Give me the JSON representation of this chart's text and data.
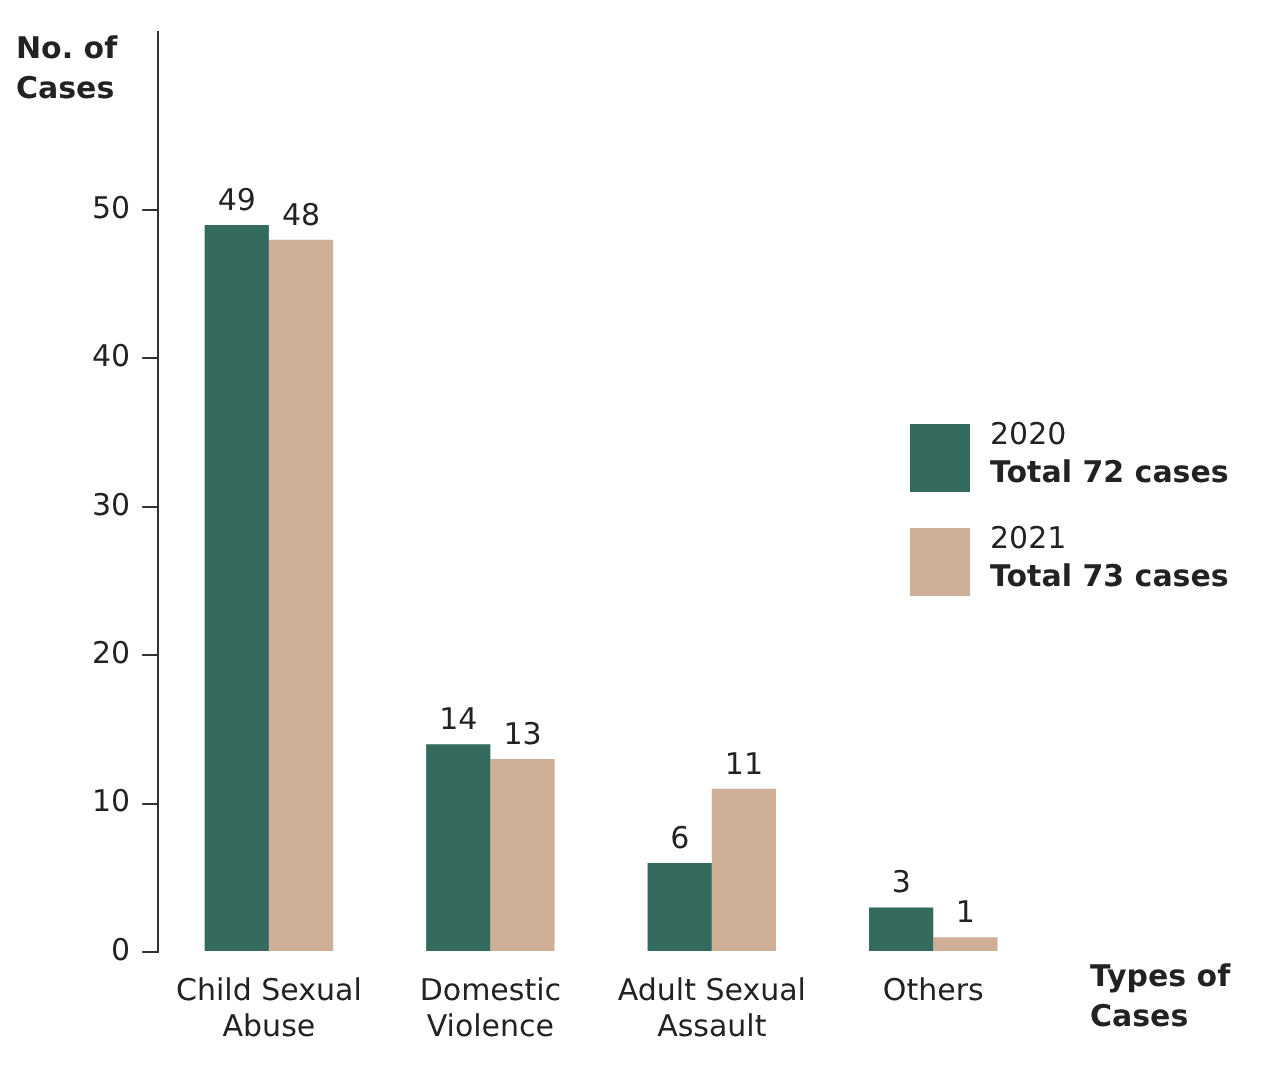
{
  "chart_data": {
    "type": "bar",
    "ylabel": "No. of Cases",
    "xlabel": "Types of Cases",
    "categories": [
      "Child Sexual Abuse",
      "Domestic Violence",
      "Adult Sexual Assault",
      "Others"
    ],
    "series": [
      {
        "name": "2020",
        "color": "#356b5f",
        "values": [
          49,
          14,
          6,
          3
        ]
      },
      {
        "name": "2021",
        "color": "#cfb096",
        "values": [
          48,
          13,
          11,
          1
        ]
      }
    ],
    "ylim": [
      0,
      62
    ],
    "yticks": [
      0,
      10,
      20,
      30,
      40,
      50
    ],
    "data_labels": true,
    "legend": "right",
    "annotations": [
      "Total 72 cases",
      "Total 73 cases"
    ]
  }
}
